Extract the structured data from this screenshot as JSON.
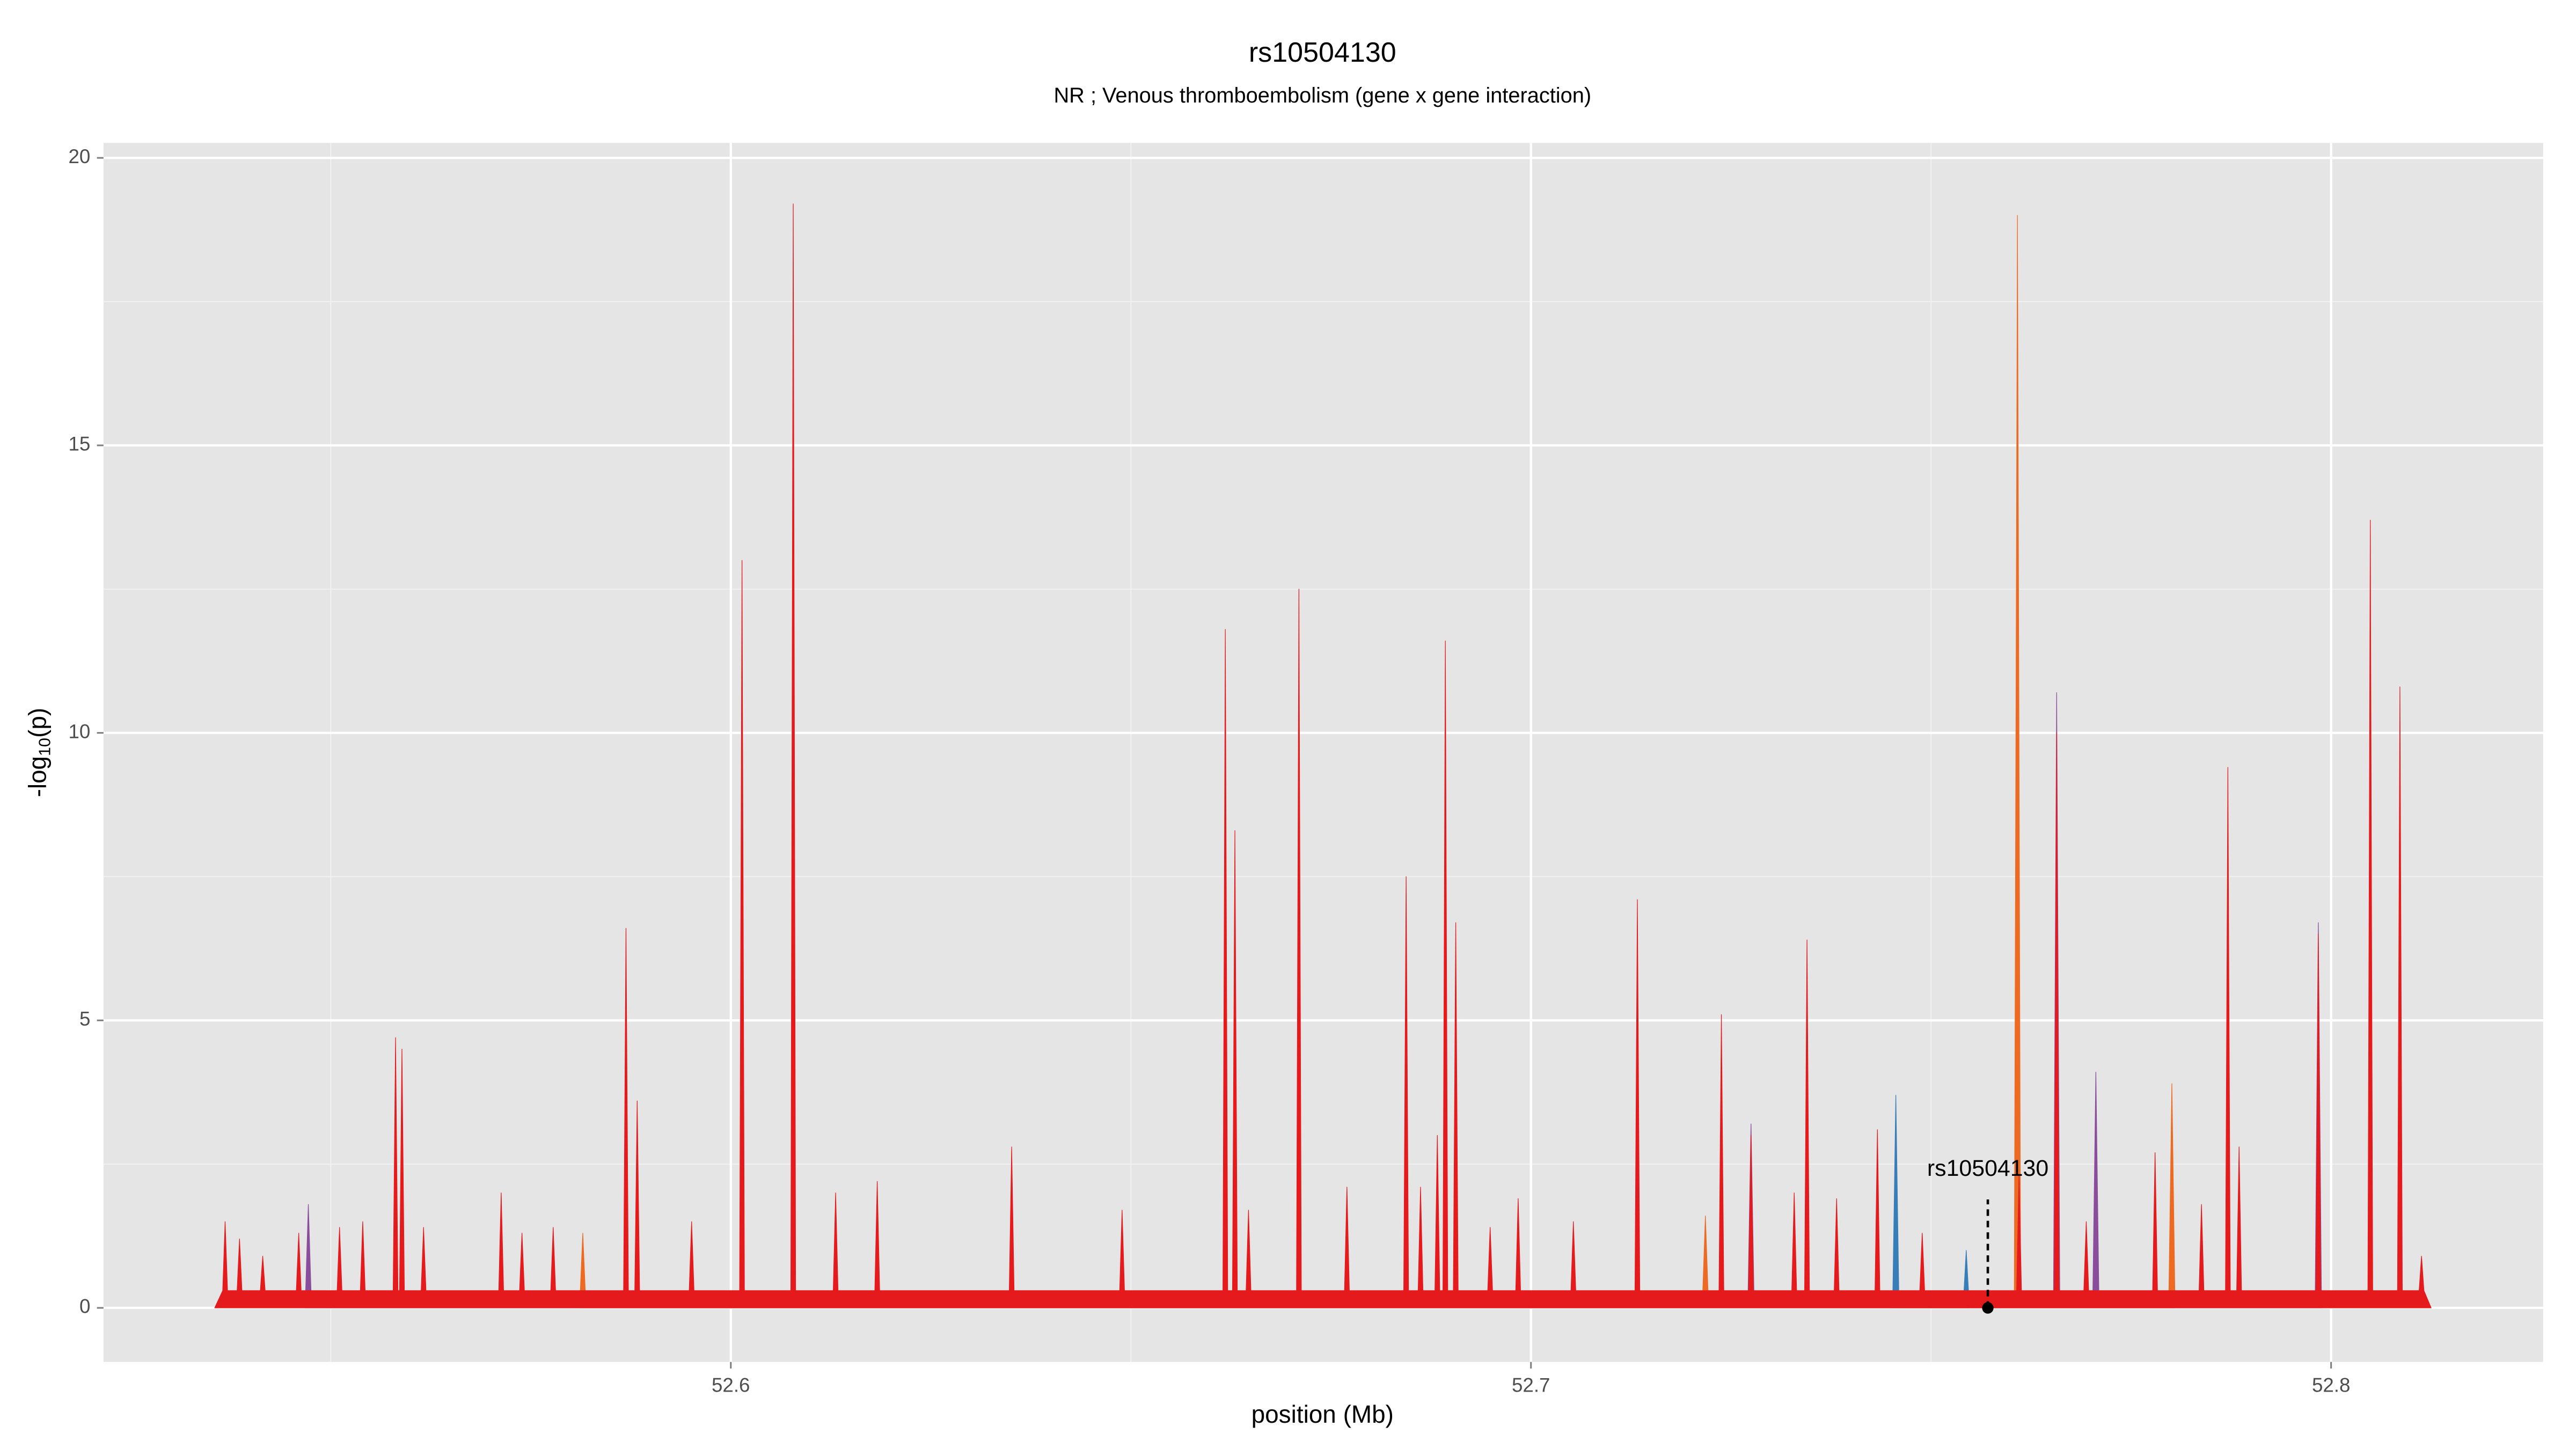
{
  "chart_data": {
    "type": "area",
    "title": "rs10504130",
    "subtitle": "NR ; Venous thromboembolism (gene x gene interaction)",
    "xlabel": "position (Mb)",
    "ylabel": [
      "-log",
      "10",
      "(p)"
    ],
    "xlim": [
      52.5216,
      52.8265
    ],
    "ylim": [
      -0.94,
      20.26
    ],
    "xticks": [
      52.6,
      52.7,
      52.8
    ],
    "yticks": [
      0,
      5,
      10,
      15,
      20
    ],
    "grid": true,
    "series": [
      {
        "color": "#377eb8",
        "x": [
          52.7452,
          52.7456,
          52.746,
          52.754,
          52.7544,
          52.7548
        ],
        "values": [
          0,
          3.7,
          0,
          0,
          1.0,
          0
        ]
      },
      {
        "color": "#8a4d9b",
        "x": [
          52.5468,
          52.5472,
          52.5476,
          52.7271,
          52.7275,
          52.7279,
          52.7653,
          52.7657,
          52.7661,
          52.7702,
          52.7706,
          52.771,
          52.798,
          52.7984,
          52.7988
        ],
        "values": [
          0,
          1.8,
          0,
          0,
          3.2,
          0,
          0,
          10.7,
          0,
          0,
          4.1,
          0,
          0,
          6.7,
          0
        ]
      },
      {
        "color": "#ed6a22",
        "x": [
          52.5811,
          52.5815,
          52.5819,
          52.7214,
          52.7218,
          52.7222,
          52.7604,
          52.7608,
          52.7612,
          52.7797,
          52.7801,
          52.7805
        ],
        "values": [
          0,
          1.3,
          0,
          0,
          1.6,
          0,
          0,
          19.0,
          0,
          0,
          3.9,
          0
        ]
      },
      {
        "color": "#e41a1c",
        "x": [
          52.5355,
          52.5365,
          52.5368,
          52.5371,
          52.5383,
          52.5386,
          52.5389,
          52.5412,
          52.5415,
          52.5418,
          52.5457,
          52.546,
          52.5463,
          52.5508,
          52.5511,
          52.5514,
          52.5537,
          52.554,
          52.5543,
          52.5578,
          52.5581,
          52.5584,
          52.5586,
          52.5589,
          52.5592,
          52.5613,
          52.5616,
          52.5619,
          52.571,
          52.5713,
          52.5716,
          52.5736,
          52.5739,
          52.5742,
          52.5775,
          52.5778,
          52.5781,
          52.5866,
          52.5869,
          52.5872,
          52.588,
          52.5883,
          52.5886,
          52.5948,
          52.5951,
          52.5954,
          52.6011,
          52.6014,
          52.6017,
          52.6075,
          52.6078,
          52.6081,
          52.6128,
          52.6131,
          52.6134,
          52.618,
          52.6183,
          52.6186,
          52.6348,
          52.6351,
          52.6354,
          52.6486,
          52.6489,
          52.6492,
          52.6615,
          52.6618,
          52.6621,
          52.6627,
          52.663,
          52.6633,
          52.6644,
          52.6647,
          52.665,
          52.6707,
          52.671,
          52.6713,
          52.6767,
          52.677,
          52.6773,
          52.6841,
          52.6844,
          52.6847,
          52.6859,
          52.6862,
          52.6865,
          52.688,
          52.6883,
          52.6886,
          52.689,
          52.6893,
          52.6896,
          52.6903,
          52.6906,
          52.6909,
          52.6946,
          52.6949,
          52.6952,
          52.6981,
          52.6984,
          52.6987,
          52.705,
          52.7053,
          52.7056,
          52.713,
          52.7133,
          52.7136,
          52.7235,
          52.7238,
          52.7241,
          52.7272,
          52.7275,
          52.7278,
          52.7326,
          52.7329,
          52.7332,
          52.7342,
          52.7345,
          52.7348,
          52.7379,
          52.7382,
          52.7385,
          52.743,
          52.7433,
          52.7436,
          52.7486,
          52.7489,
          52.7492,
          52.7607,
          52.761,
          52.7613,
          52.7654,
          52.7657,
          52.766,
          52.7691,
          52.7694,
          52.7697,
          52.7777,
          52.778,
          52.7783,
          52.7835,
          52.7838,
          52.7841,
          52.7868,
          52.7871,
          52.7874,
          52.7882,
          52.7885,
          52.7888,
          52.7981,
          52.7984,
          52.7987,
          52.8046,
          52.8049,
          52.8052,
          52.8083,
          52.8086,
          52.8089,
          52.811,
          52.8113,
          52.8116,
          52.8125
        ],
        "values": [
          0,
          0.3,
          1.5,
          0.3,
          0.3,
          1.2,
          0.3,
          0.3,
          0.9,
          0.3,
          0.3,
          1.3,
          0.3,
          0.3,
          1.4,
          0.3,
          0.3,
          1.5,
          0.3,
          0.3,
          4.7,
          0.3,
          0.3,
          4.5,
          0.3,
          0.3,
          1.4,
          0.3,
          0.3,
          2.0,
          0.3,
          0.3,
          1.3,
          0.3,
          0.3,
          1.4,
          0.3,
          0.3,
          6.6,
          0.3,
          0.3,
          3.6,
          0.3,
          0.3,
          1.5,
          0.3,
          0.3,
          13.0,
          0.3,
          0.3,
          19.2,
          0.3,
          0.3,
          2.0,
          0.3,
          0.3,
          2.2,
          0.3,
          0.3,
          2.8,
          0.3,
          0.3,
          1.7,
          0.3,
          0.3,
          11.8,
          0.3,
          0.3,
          8.3,
          0.3,
          0.3,
          1.7,
          0.3,
          0.3,
          12.5,
          0.3,
          0.3,
          2.1,
          0.3,
          0.3,
          7.5,
          0.3,
          0.3,
          2.1,
          0.3,
          0.3,
          3.0,
          0.3,
          0.3,
          11.6,
          0.3,
          0.3,
          6.7,
          0.3,
          0.3,
          1.4,
          0.3,
          0.3,
          1.9,
          0.3,
          0.3,
          1.5,
          0.3,
          0.3,
          7.1,
          0.3,
          0.3,
          5.1,
          0.3,
          0.3,
          3.0,
          0.3,
          0.3,
          2.0,
          0.3,
          0.3,
          6.4,
          0.3,
          0.3,
          1.9,
          0.3,
          0.3,
          3.1,
          0.3,
          0.3,
          1.3,
          0.3,
          0.3,
          2.3,
          0.3,
          0.3,
          10.0,
          0.3,
          0.3,
          1.5,
          0.3,
          0.3,
          2.7,
          0.3,
          0.3,
          1.8,
          0.3,
          0.3,
          9.4,
          0.3,
          0.3,
          2.8,
          0.3,
          0.3,
          6.5,
          0.3,
          0.3,
          13.7,
          0.3,
          0.3,
          10.8,
          0.3,
          0.3,
          0.9,
          0.3,
          0
        ]
      }
    ],
    "annotation": {
      "label": "rs10504130",
      "x": 52.7571,
      "y": 0
    }
  }
}
